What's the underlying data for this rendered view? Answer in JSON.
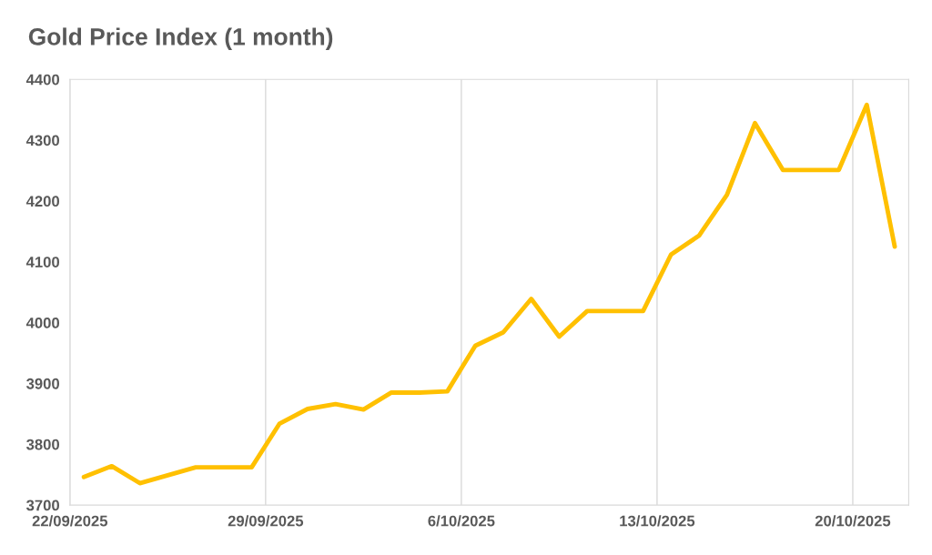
{
  "chart_data": {
    "type": "line",
    "title": "Gold Price Index (1 month)",
    "x": [
      "2025-09-22T12:00",
      "2025-09-23T12:00",
      "2025-09-24T12:00",
      "2025-09-25T12:00",
      "2025-09-26T12:00",
      "2025-09-27T12:00",
      "2025-09-28T12:00",
      "2025-09-29T12:00",
      "2025-09-30T12:00",
      "2025-10-01T12:00",
      "2025-10-02T12:00",
      "2025-10-03T12:00",
      "2025-10-04T12:00",
      "2025-10-05T12:00",
      "2025-10-06T12:00",
      "2025-10-07T12:00",
      "2025-10-08T12:00",
      "2025-10-09T12:00",
      "2025-10-10T12:00",
      "2025-10-11T12:00",
      "2025-10-12T12:00",
      "2025-10-13T12:00",
      "2025-10-14T12:00",
      "2025-10-15T12:00",
      "2025-10-16T12:00",
      "2025-10-17T12:00",
      "2025-10-18T12:00",
      "2025-10-19T12:00",
      "2025-10-20T12:00",
      "2025-10-21T12:00"
    ],
    "series": [
      {
        "color": "#ffc000",
        "values": [
          3746,
          3764,
          3736,
          3749,
          3762,
          3762,
          3762,
          3834,
          3858,
          3866,
          3857,
          3885,
          3885,
          3887,
          3962,
          3984,
          4039,
          3977,
          4019,
          4019,
          4019,
          4112,
          4143,
          4210,
          4328,
          4251,
          4251,
          4251,
          4358,
          4125
        ]
      }
    ],
    "xlim": [
      "2025-09-22",
      "2025-10-22"
    ],
    "xticks": [
      {
        "value": "2025-09-22",
        "label": "22/09/2025"
      },
      {
        "value": "2025-09-29",
        "label": "29/09/2025"
      },
      {
        "value": "2025-10-06",
        "label": "6/10/2025"
      },
      {
        "value": "2025-10-13",
        "label": "13/10/2025"
      },
      {
        "value": "2025-10-20",
        "label": "20/10/2025"
      }
    ],
    "ylim": [
      3700,
      4400
    ],
    "yticks": [
      3700,
      3800,
      3900,
      4000,
      4100,
      4200,
      4300,
      4400
    ],
    "grid": "x",
    "legend": false,
    "marker": "none",
    "line_style": "solid"
  }
}
